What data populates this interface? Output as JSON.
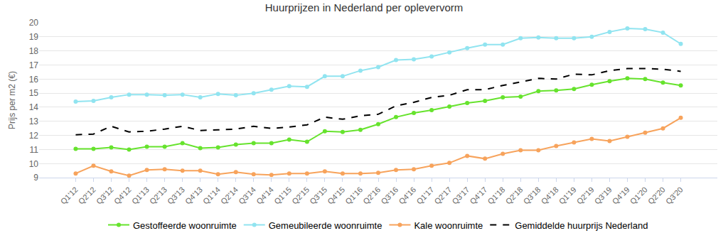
{
  "chart_data": {
    "type": "line",
    "title": "Huurprijzen in Nederland per oplevervorm",
    "y_label": "Prijs per m2 (€)",
    "categories": [
      "Q1'12",
      "Q2'12",
      "Q3'12",
      "Q4'12",
      "Q1'13",
      "Q2'13",
      "Q3'13",
      "Q4'13",
      "Q1'14",
      "Q2'14",
      "Q3'14",
      "Q4'14",
      "Q1'15",
      "Q2'15",
      "Q3'15",
      "Q4'15",
      "Q1'16",
      "Q2'16",
      "Q3'16",
      "Q4'16",
      "Q1'17",
      "Q2'17",
      "Q3'17",
      "Q4'17",
      "Q1'18",
      "Q2'18",
      "Q3'18",
      "Q4'18",
      "Q1'19",
      "Q2'19",
      "Q3'19",
      "Q4'19",
      "Q1'20",
      "Q2'20",
      "Q3'20"
    ],
    "series": [
      {
        "name": "Gestoffeerde woonruimte",
        "color": "#66e32d",
        "marker": "circle",
        "line_style": "solid",
        "values": [
          11.05,
          11.05,
          11.15,
          11.0,
          11.2,
          11.2,
          11.45,
          11.1,
          11.15,
          11.35,
          11.45,
          11.45,
          11.7,
          11.55,
          12.3,
          12.25,
          12.4,
          12.8,
          13.3,
          13.6,
          13.8,
          14.05,
          14.3,
          14.45,
          14.7,
          14.75,
          15.15,
          15.2,
          15.3,
          15.6,
          15.85,
          16.05,
          16.0,
          15.75,
          15.55
        ]
      },
      {
        "name": "Gemeubileerde woonruimte",
        "color": "#91e4f0",
        "marker": "circle",
        "line_style": "solid",
        "values": [
          14.4,
          14.45,
          14.7,
          14.9,
          14.9,
          14.85,
          14.9,
          14.7,
          14.95,
          14.85,
          15.0,
          15.25,
          15.5,
          15.45,
          16.2,
          16.2,
          16.6,
          16.85,
          17.35,
          17.4,
          17.6,
          17.9,
          18.2,
          18.45,
          18.45,
          18.9,
          18.95,
          18.9,
          18.9,
          19.0,
          19.35,
          19.6,
          19.55,
          19.3,
          18.5
        ]
      },
      {
        "name": "Kale woonruimte",
        "color": "#f7a35c",
        "marker": "circle",
        "line_style": "solid",
        "values": [
          9.3,
          9.85,
          9.45,
          9.15,
          9.55,
          9.6,
          9.5,
          9.5,
          9.25,
          9.4,
          9.25,
          9.2,
          9.3,
          9.3,
          9.45,
          9.3,
          9.3,
          9.35,
          9.55,
          9.6,
          9.85,
          10.05,
          10.55,
          10.35,
          10.7,
          10.95,
          10.95,
          11.25,
          11.5,
          11.75,
          11.6,
          11.9,
          12.2,
          12.5,
          13.25
        ]
      },
      {
        "name": "Gemiddelde huurprijs Nederland",
        "color": "#000000",
        "marker": "none",
        "line_style": "dashed",
        "values": [
          12.05,
          12.1,
          12.65,
          12.25,
          12.3,
          12.45,
          12.65,
          12.35,
          12.4,
          12.45,
          12.65,
          12.5,
          12.6,
          12.75,
          13.3,
          13.15,
          13.4,
          13.5,
          14.1,
          14.35,
          14.7,
          14.85,
          15.25,
          15.25,
          15.55,
          15.8,
          16.05,
          16.0,
          16.35,
          16.3,
          16.6,
          16.75,
          16.75,
          16.7,
          16.55
        ]
      }
    ],
    "ylim": [
      9,
      20
    ],
    "yticks": [
      9,
      10,
      11,
      12,
      13,
      14,
      15,
      16,
      17,
      18,
      19,
      20
    ],
    "grid": true,
    "legend": "bottom"
  }
}
